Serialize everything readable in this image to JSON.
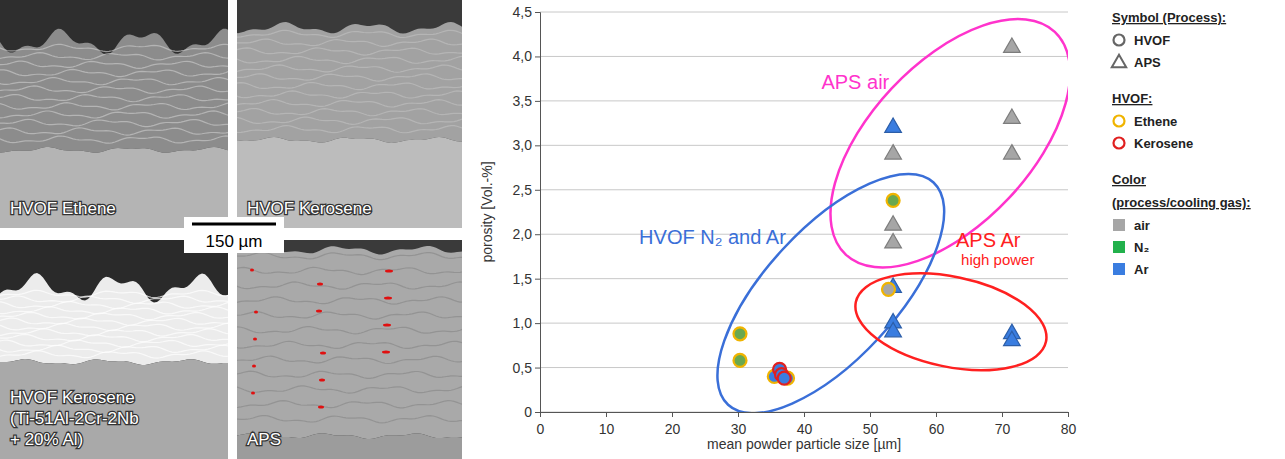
{
  "chart_data": {
    "type": "scatter",
    "x_label": "mean powder particle size [µm]",
    "y_label": "porosity [Vol.-%]",
    "xlim": [
      0,
      80
    ],
    "xticks": [
      0,
      10,
      20,
      30,
      40,
      50,
      60,
      70,
      80
    ],
    "ylim": [
      0,
      4.5
    ],
    "yticks": [
      0,
      {
        "value": 0.5,
        "label": "0,5"
      },
      {
        "value": 1.0,
        "label": "1,0"
      },
      {
        "value": 1.5,
        "label": "1,5"
      },
      {
        "value": 2.0,
        "label": "2,0"
      },
      {
        "value": 2.5,
        "label": "2,5"
      },
      {
        "value": 3.0,
        "label": "3,0"
      },
      {
        "value": 3.5,
        "label": "3,5"
      },
      {
        "value": 4.0,
        "label": "4,0"
      },
      {
        "value": 4.5,
        "label": "4,5"
      }
    ],
    "grid": true,
    "legend": "right",
    "series": [
      {
        "marker": "triangle",
        "color": "#a6a6a6",
        "x": [
          53.5,
          53.5,
          53.5,
          71.5,
          71.5,
          71.5
        ],
        "values": [
          2.9,
          2.1,
          1.9,
          4.1,
          3.3,
          2.9
        ]
      },
      {
        "marker": "triangle",
        "color": "#3a7de0",
        "x": [
          53.5
        ],
        "values": [
          3.2
        ]
      },
      {
        "marker": "triangle",
        "color": "#3a7de0",
        "x": [
          53.5,
          53.5,
          53.5,
          71.5,
          71.5
        ],
        "values": [
          1.4,
          1.0,
          0.9,
          0.88,
          0.8
        ]
      },
      {
        "marker": "circle",
        "color": "#6aa84f",
        "fuel": "Ethene",
        "x": [
          30.3,
          30.3,
          53.5
        ],
        "values": [
          0.88,
          0.58,
          2.38
        ]
      },
      {
        "marker": "circle",
        "color": "#3a7de0",
        "fuel": "Ethene",
        "x": [
          35.5,
          37.5
        ],
        "values": [
          0.4,
          0.38
        ]
      },
      {
        "marker": "circle",
        "color": "#3a7de0",
        "fuel": "Kerosene",
        "x": [
          36.3,
          36.6,
          37.0
        ],
        "values": [
          0.48,
          0.42,
          0.38
        ]
      },
      {
        "marker": "circle",
        "color": "#a6a6a6",
        "fuel": "Ethene",
        "x": [
          52.8
        ],
        "values": [
          1.38
        ]
      }
    ],
    "legend_key": [
      {
        "title": "Symbol (Process):",
        "items": [
          {
            "label": "HVOF",
            "marker": "circle",
            "color": "#666666"
          },
          {
            "label": "APS",
            "marker": "triangle",
            "color": "#666666"
          }
        ]
      },
      {
        "title": "HVOF:",
        "items": [
          {
            "label": "Ethene",
            "marker": "circle",
            "color": "#f0b400"
          },
          {
            "label": "Kerosene",
            "marker": "circle",
            "color": "#e02020"
          }
        ]
      },
      {
        "title": "Color",
        "subtitle": "(process/cooling gas):",
        "items": [
          {
            "label": "air",
            "marker": "square",
            "color": "#a6a6a6"
          },
          {
            "label": "N₂",
            "marker": "square",
            "color": "#22b14c"
          },
          {
            "label": "Ar",
            "marker": "square",
            "color": "#3a7de0"
          }
        ]
      }
    ],
    "annotations": [
      {
        "label": "APS air",
        "color": "#ff33cc",
        "series": [
          0,
          1
        ]
      },
      {
        "label": "HVOF N₂ and Ar",
        "color": "#3a6fd8",
        "series": [
          3,
          4,
          5,
          6
        ]
      },
      {
        "label": "APS Ar",
        "sublabel": "high power",
        "color": "#ff2020",
        "series": [
          2
        ]
      }
    ]
  },
  "micrographs": {
    "panels": [
      {
        "lines": [
          "HVOF Ethene"
        ]
      },
      {
        "lines": [
          "HVOF Kerosene"
        ]
      },
      {
        "lines": [
          "HVOF Kerosene",
          "(Ti-51Al-2Cr-2Nb",
          "+ 20% Al)"
        ]
      },
      {
        "lines": [
          "APS"
        ]
      }
    ],
    "scale_bar": "150 µm"
  }
}
